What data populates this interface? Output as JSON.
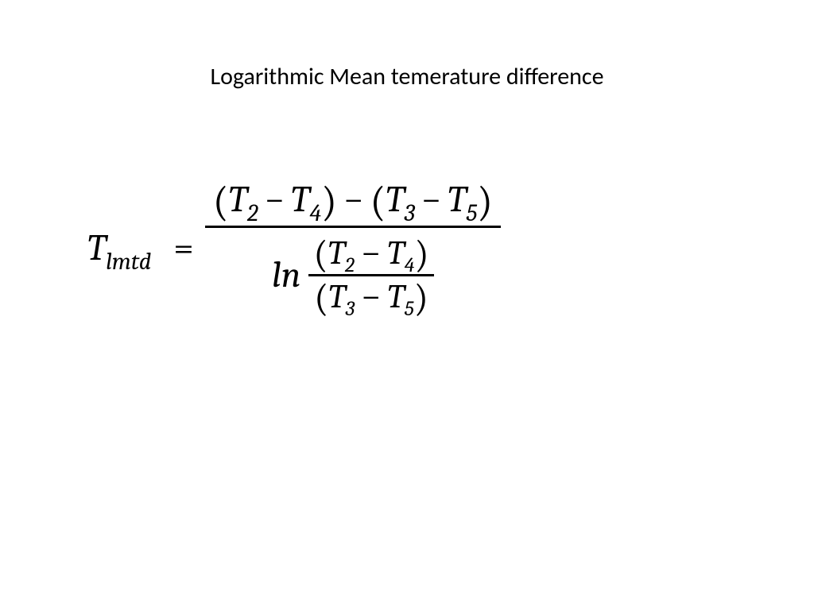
{
  "title": "Logarithmic Mean temerature difference",
  "equation": {
    "lhs_var": "T",
    "lhs_sub": "lmtd",
    "equals": "=",
    "num_lparen1": "(",
    "num_T1": "T",
    "num_sub1": "2",
    "num_minus1": "−",
    "num_T2": "T",
    "num_sub2": "4",
    "num_rparen1": ")",
    "num_outer_minus": "−",
    "num_lparen2": "(",
    "num_T3": "T",
    "num_sub3": "3",
    "num_minus2": "−",
    "num_T4": "T",
    "num_sub4": "5",
    "num_rparen2": ")",
    "den_ln": "ln",
    "den_inner_num_lparen": "(",
    "den_inner_num_T1": "T",
    "den_inner_num_sub1": "2",
    "den_inner_num_minus": "−",
    "den_inner_num_T2": "T",
    "den_inner_num_sub2": "4",
    "den_inner_num_rparen": ")",
    "den_inner_den_lparen": "(",
    "den_inner_den_T1": "T",
    "den_inner_den_sub1": "3",
    "den_inner_den_minus": "−",
    "den_inner_den_T2": "T",
    "den_inner_den_sub2": "5",
    "den_inner_den_rparen": ")"
  },
  "style": {
    "background": "#ffffff",
    "text_color": "#000000",
    "title_fontsize": 30,
    "equation_fontsize": 46,
    "subscript_fontsize": 30,
    "font_family_title": "Calibri",
    "font_family_equation": "Cambria Math",
    "fraction_bar_thickness": 3
  }
}
